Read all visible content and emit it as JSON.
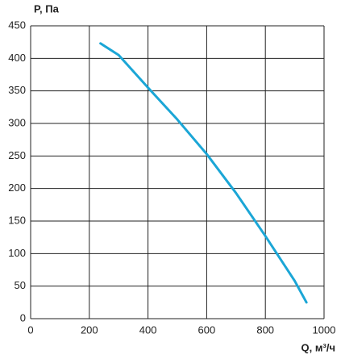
{
  "chart_data": {
    "type": "line",
    "y_label": "P, Па",
    "x_label": "Q, м³/ч",
    "x": [
      238,
      300,
      400,
      500,
      600,
      700,
      800,
      900,
      940
    ],
    "series": [
      {
        "color": "#1ba6d6",
        "values": [
          423,
          405,
          355,
          306,
          253,
          193,
          127,
          58,
          25
        ]
      }
    ],
    "xlim": [
      0,
      1000
    ],
    "xticks": [
      0,
      200,
      400,
      600,
      800,
      1000
    ],
    "ylim": [
      0,
      450
    ],
    "yticks": [
      0,
      50,
      100,
      150,
      200,
      250,
      300,
      350,
      400,
      450
    ],
    "grid": true
  }
}
